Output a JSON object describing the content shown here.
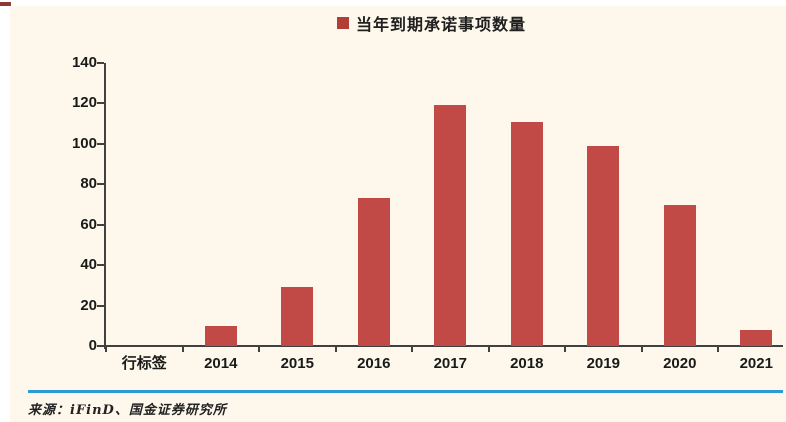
{
  "panel": {
    "background": "#FDF8EB"
  },
  "legend": {
    "marker_color": "#B23E3A"
  },
  "chart_data": {
    "type": "bar",
    "title": "当年到期承诺事项数量",
    "categories": [
      "行标签",
      "2014",
      "2015",
      "2016",
      "2017",
      "2018",
      "2019",
      "2020",
      "2021"
    ],
    "values": [
      null,
      10,
      29,
      73,
      119,
      111,
      99,
      70,
      8
    ],
    "xlabel": "",
    "ylabel": "",
    "ylim": [
      0,
      140
    ],
    "ytick_step": 20,
    "bar_color": "#C14A47",
    "axis_color": "#404040",
    "grid": false,
    "legend_position": "top-center",
    "legend_entries": [
      "当年到期承诺事项数量"
    ]
  },
  "footer": {
    "source": "来源：iFinD、国金证券研究所",
    "divider_color": "#2E9BD6"
  }
}
